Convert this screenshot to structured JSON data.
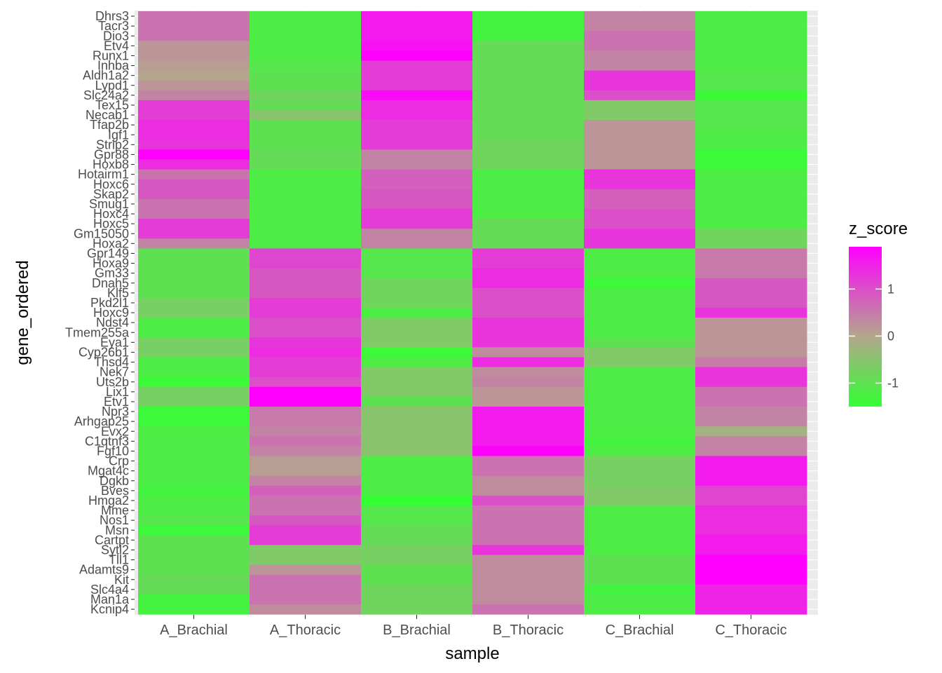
{
  "chart_data": {
    "type": "heatmap",
    "xlabel": "sample",
    "ylabel": "gene_ordered",
    "legend": {
      "title": "z_score",
      "placement": "right",
      "ticks": [
        1,
        0,
        -1
      ],
      "range": [
        -1.5,
        1.9
      ],
      "colors": {
        "low": "#33ff33",
        "mid": "#b3a68c",
        "high": "#ff00ff"
      }
    },
    "grid": true,
    "x": [
      "A_Brachial",
      "A_Thoracic",
      "B_Brachial",
      "B_Thoracic",
      "C_Brachial",
      "C_Thoracic"
    ],
    "genes": [
      "Dhrs3",
      "Tacr3",
      "Dio3",
      "Etv4",
      "Runx1",
      "Inhba",
      "Aldh1a2",
      "Lypd1",
      "Slc24a2",
      "Tex15",
      "Necab1",
      "Tfap2b",
      "Igf1",
      "Strip2",
      "Gpr88",
      "Hoxb8",
      "Hotairm1",
      "Hoxc6",
      "Skap2",
      "Smug1",
      "Hoxc4",
      "Hoxc5",
      "Gm15050",
      "Hoxa2",
      "Gpr149",
      "Hoxa9",
      "Gm33",
      "Dnah5",
      "Klf5",
      "Pkd2l1",
      "Hoxc9",
      "Ndst4",
      "Tmem255a",
      "Eya1",
      "Cyp26b1",
      "Thsd4",
      "Nek7",
      "Uts2b",
      "Lix1",
      "Etv1",
      "Npr3",
      "Arhgap25",
      "Evx2",
      "C1qtnf3",
      "Fgf10",
      "Crp",
      "Mgat4c",
      "Dgkb",
      "Bves",
      "Hmga2",
      "Mme",
      "Nos1",
      "Msn",
      "Cartpt",
      "Sytl2",
      "Tll1",
      "Adamts9",
      "Kit",
      "Slc4a4",
      "Man1a",
      "Kcnip4"
    ],
    "ytick_labels": [
      "Dhrs3",
      "Tacr3",
      "Dio3",
      "Etv4",
      "Runx1",
      "Inhba",
      "Aldh1a2",
      "Lypd1",
      "Slc24a2",
      "Tex15",
      "Necab1",
      "Tfap2b",
      "Igf1",
      "Strip2",
      "Gpr88",
      "Hoxb8",
      "Hotairm1",
      "Hoxc6",
      "Skap2",
      "Smug1",
      "Hoxc4",
      "Hoxc5",
      "Gm15050",
      "Hoxa2",
      "Gpr149",
      "Hoxa9",
      "Gm33",
      "Dnah5",
      "Klf5",
      "Pkd2l1",
      "Hoxc9",
      "Ndst4",
      "Tmem255a",
      "Eya1",
      "Cyp26b1",
      "Thsd4",
      "Nek7",
      "Uts2b",
      "Lix1",
      "Etv1",
      "Npr3",
      "Arhgap25",
      "Evx2",
      "C1qtnf3",
      "Fgf10",
      "Crp",
      "Mgat4c",
      "Dgkb",
      "Bves",
      "Hmga2",
      "Mme",
      "Nos1",
      "Msn",
      "Cartpt",
      "Sytl2",
      "Tll1",
      "Adamts9",
      "Kit",
      "Slc4a4",
      "Man1a",
      "Kcnip4"
    ],
    "values": [
      [
        0.6,
        -1.2,
        1.6,
        -1.3,
        0.4,
        -1.2
      ],
      [
        0.6,
        -1.2,
        1.6,
        -1.3,
        0.4,
        -1.2
      ],
      [
        0.6,
        -1.2,
        1.6,
        -1.3,
        0.6,
        -1.2
      ],
      [
        0.2,
        -1.2,
        1.7,
        -0.9,
        0.6,
        -1.2
      ],
      [
        0.2,
        -1.2,
        1.9,
        -0.9,
        0.4,
        -1.2
      ],
      [
        0.1,
        -1.1,
        1.2,
        -0.9,
        0.4,
        -1.2
      ],
      [
        0.0,
        -1.0,
        1.2,
        -0.9,
        1.3,
        -1.1
      ],
      [
        0.2,
        -1.0,
        1.2,
        -0.9,
        1.3,
        -1.1
      ],
      [
        0.4,
        -0.8,
        1.8,
        -0.9,
        1.0,
        -1.4
      ],
      [
        1.2,
        -0.9,
        1.4,
        -0.9,
        -0.6,
        -1.1
      ],
      [
        1.2,
        -0.5,
        1.4,
        -0.9,
        -0.6,
        -1.1
      ],
      [
        1.4,
        -1.0,
        1.2,
        -0.9,
        0.2,
        -1.1
      ],
      [
        1.4,
        -1.0,
        1.2,
        -0.9,
        0.2,
        -1.2
      ],
      [
        1.3,
        -1.0,
        1.2,
        -0.8,
        0.2,
        -1.2
      ],
      [
        1.9,
        -0.9,
        0.4,
        -0.8,
        0.2,
        -1.4
      ],
      [
        1.4,
        -0.9,
        0.4,
        -0.8,
        0.2,
        -1.4
      ],
      [
        0.6,
        -1.2,
        0.8,
        -1.2,
        1.3,
        -1.2
      ],
      [
        0.9,
        -1.2,
        0.8,
        -1.2,
        1.3,
        -1.2
      ],
      [
        0.9,
        -1.2,
        0.9,
        -1.2,
        0.8,
        -1.2
      ],
      [
        0.6,
        -1.2,
        0.9,
        -1.2,
        0.8,
        -1.2
      ],
      [
        0.6,
        -1.2,
        1.2,
        -1.2,
        1.0,
        -1.2
      ],
      [
        1.2,
        -1.2,
        1.2,
        -0.9,
        1.0,
        -1.2
      ],
      [
        1.2,
        -1.2,
        0.4,
        -0.9,
        1.3,
        -0.8
      ],
      [
        0.4,
        -1.2,
        0.4,
        -0.9,
        1.3,
        -0.8
      ],
      [
        -1.0,
        1.1,
        -1.1,
        1.2,
        -1.2,
        0.5
      ],
      [
        -1.0,
        1.1,
        -1.1,
        1.2,
        -1.2,
        0.5
      ],
      [
        -1.0,
        0.9,
        -1.1,
        1.4,
        -1.2,
        0.5
      ],
      [
        -1.0,
        0.9,
        -0.8,
        1.4,
        -1.4,
        0.9
      ],
      [
        -1.0,
        0.9,
        -0.8,
        1.0,
        -1.2,
        0.9
      ],
      [
        -0.7,
        1.2,
        -0.8,
        1.0,
        -1.2,
        0.9
      ],
      [
        -0.7,
        1.2,
        -1.2,
        1.0,
        -1.2,
        1.3
      ],
      [
        -1.2,
        1.0,
        -0.6,
        1.3,
        -1.2,
        0.2
      ],
      [
        -1.2,
        1.0,
        -0.6,
        1.3,
        -1.2,
        0.2
      ],
      [
        -0.7,
        1.3,
        -0.6,
        1.3,
        -1.0,
        0.2
      ],
      [
        -0.7,
        1.4,
        -1.4,
        0.3,
        -0.6,
        0.2
      ],
      [
        -1.2,
        1.2,
        -1.2,
        1.4,
        -0.6,
        0.5
      ],
      [
        -1.2,
        1.2,
        -0.6,
        0.3,
        -1.2,
        1.3
      ],
      [
        -1.4,
        1.0,
        -0.6,
        0.4,
        -1.2,
        1.3
      ],
      [
        -0.7,
        1.9,
        -0.6,
        0.2,
        -1.2,
        0.6
      ],
      [
        -0.7,
        1.9,
        -1.0,
        0.2,
        -1.2,
        0.6
      ],
      [
        -1.4,
        0.5,
        -0.5,
        1.6,
        -1.2,
        0.4
      ],
      [
        -1.4,
        0.5,
        -0.5,
        1.6,
        -1.2,
        0.4
      ],
      [
        -1.2,
        0.4,
        -0.5,
        1.6,
        -1.2,
        -0.2
      ],
      [
        -1.2,
        0.6,
        -0.5,
        1.6,
        -1.3,
        0.4
      ],
      [
        -1.2,
        0.4,
        -0.5,
        1.9,
        -1.2,
        0.4
      ],
      [
        -1.2,
        0.1,
        -1.2,
        0.6,
        -0.7,
        1.6
      ],
      [
        -1.2,
        0.1,
        -1.2,
        0.6,
        -0.7,
        1.6
      ],
      [
        -1.2,
        0.4,
        -1.2,
        0.3,
        -0.7,
        1.6
      ],
      [
        -1.3,
        0.8,
        -1.2,
        0.3,
        -0.6,
        1.1
      ],
      [
        -1.2,
        0.6,
        -1.5,
        1.0,
        -0.6,
        1.1
      ],
      [
        -1.2,
        0.6,
        -1.1,
        0.6,
        -1.2,
        1.4
      ],
      [
        -1.1,
        0.9,
        -1.1,
        0.6,
        -1.2,
        1.4
      ],
      [
        -1.4,
        1.2,
        -0.9,
        0.6,
        -1.2,
        1.4
      ],
      [
        -1.0,
        1.2,
        -0.9,
        0.6,
        -1.2,
        1.6
      ],
      [
        -1.0,
        -0.6,
        -0.7,
        1.3,
        -1.2,
        1.6
      ],
      [
        -1.0,
        -0.6,
        -0.7,
        0.3,
        -1.0,
        1.9
      ],
      [
        -1.0,
        0.2,
        -1.0,
        0.3,
        -1.0,
        1.9
      ],
      [
        -0.9,
        0.6,
        -1.0,
        0.3,
        -1.0,
        1.9
      ],
      [
        -0.9,
        0.6,
        -0.8,
        0.3,
        -1.3,
        1.5
      ],
      [
        -1.3,
        0.6,
        -0.8,
        0.3,
        -1.2,
        1.5
      ],
      [
        -1.3,
        0.3,
        -0.8,
        0.6,
        -1.2,
        1.5
      ]
    ]
  }
}
